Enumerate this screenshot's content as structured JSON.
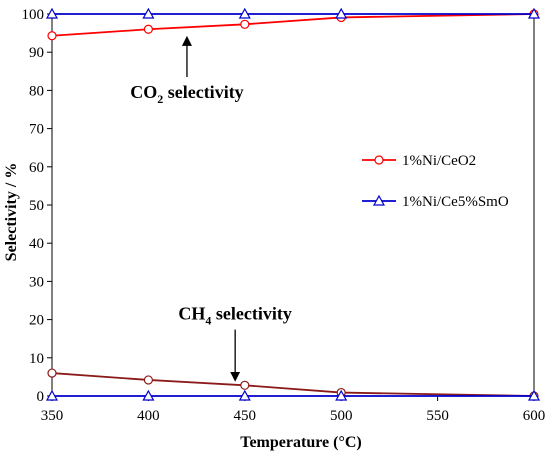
{
  "chart_data": {
    "type": "line",
    "xlabel": "Temperature (°C)",
    "ylabel": "Selectivity / %",
    "xlim": [
      350,
      600
    ],
    "ylim": [
      0,
      100
    ],
    "xticks": [
      "350",
      "400",
      "450",
      "500",
      "550",
      "600"
    ],
    "yticks": [
      "0",
      "10",
      "20",
      "30",
      "40",
      "50",
      "60",
      "70",
      "80",
      "90",
      "100"
    ],
    "grid": false,
    "legend_position": "right",
    "series": [
      {
        "name": "1%Ni/CeO2",
        "group": "CO2",
        "color": "#ff0000",
        "marker": "circle",
        "x": [
          350,
          400,
          450,
          500,
          600
        ],
        "y": [
          94.3,
          96.0,
          97.3,
          99.1,
          100
        ]
      },
      {
        "name": "1%Ni/CeO2",
        "group": "CH4",
        "color": "#8b1a1a",
        "marker": "circle",
        "x": [
          350,
          400,
          450,
          500,
          600
        ],
        "y": [
          6.0,
          4.2,
          2.8,
          0.9,
          0
        ]
      },
      {
        "name": "1%Ni/Ce5%SmO",
        "group": "CO2",
        "color": "#0000cc",
        "marker": "triangle",
        "x": [
          350,
          400,
          450,
          500,
          600
        ],
        "y": [
          100,
          100,
          100,
          100,
          100
        ]
      },
      {
        "name": "1%Ni/Ce5%SmO",
        "group": "CH4",
        "color": "#0000cc",
        "marker": "triangle",
        "x": [
          350,
          400,
          450,
          500,
          600
        ],
        "y": [
          0,
          0,
          0,
          0,
          0
        ]
      }
    ],
    "legend": [
      {
        "label": "1%Ni/CeO2",
        "color": "#ff0000",
        "marker": "circle"
      },
      {
        "label": "1%Ni/Ce5%SmO",
        "color": "#0000cc",
        "marker": "triangle"
      }
    ],
    "annotations": [
      {
        "main": "CO",
        "sub": "2",
        "rest": " selectivity",
        "at": [
          420,
          78
        ],
        "arrow_to": [
          420,
          93.5
        ],
        "arrow_dir": "up"
      },
      {
        "main": "CH",
        "sub": "4",
        "rest": " selectivity",
        "at": [
          445,
          20
        ],
        "arrow_to": [
          445,
          4.5
        ],
        "arrow_dir": "down"
      }
    ]
  }
}
